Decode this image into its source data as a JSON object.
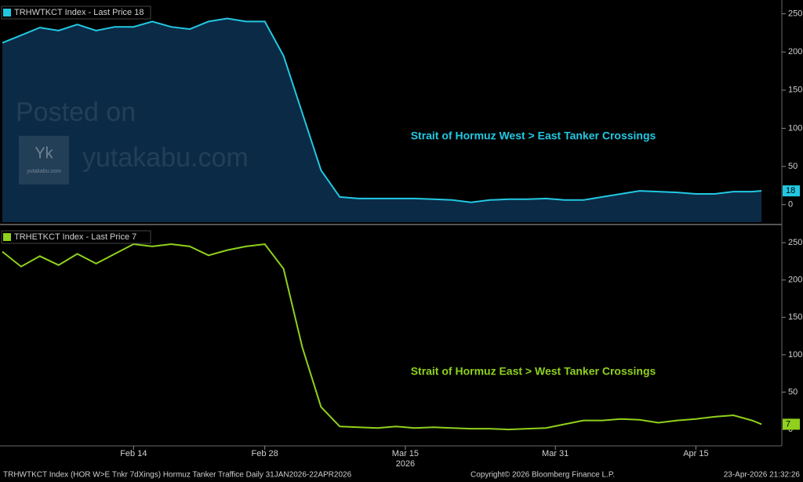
{
  "chart_data": [
    {
      "type": "area",
      "legend": "TRHWTKCT Index - Last Price 18",
      "annotation": "Strait of Hormuz West > East Tanker Crossings",
      "x": [
        "2026-01-31",
        "2026-02-02",
        "2026-02-04",
        "2026-02-06",
        "2026-02-08",
        "2026-02-10",
        "2026-02-12",
        "2026-02-14",
        "2026-02-16",
        "2026-02-18",
        "2026-02-20",
        "2026-02-22",
        "2026-02-24",
        "2026-02-26",
        "2026-02-28",
        "2026-03-02",
        "2026-03-04",
        "2026-03-06",
        "2026-03-08",
        "2026-03-10",
        "2026-03-12",
        "2026-03-14",
        "2026-03-16",
        "2026-03-18",
        "2026-03-20",
        "2026-03-22",
        "2026-03-24",
        "2026-03-26",
        "2026-03-28",
        "2026-03-30",
        "2026-04-01",
        "2026-04-03",
        "2026-04-05",
        "2026-04-07",
        "2026-04-09",
        "2026-04-11",
        "2026-04-13",
        "2026-04-15",
        "2026-04-17",
        "2026-04-19",
        "2026-04-21",
        "2026-04-22"
      ],
      "series": [
        {
          "name": "TRHWTKCT Index",
          "color": "#22c8e2",
          "fill": "#0b2a46",
          "values": [
            212,
            222,
            232,
            228,
            236,
            228,
            233,
            233,
            240,
            233,
            230,
            240,
            244,
            240,
            240,
            195,
            120,
            45,
            10,
            8,
            8,
            8,
            8,
            7,
            6,
            3,
            6,
            7,
            7,
            8,
            6,
            6,
            10,
            14,
            18,
            17,
            16,
            14,
            14,
            17,
            17,
            18
          ]
        }
      ],
      "xlim": [
        "2026-01-31",
        "2026-04-24"
      ],
      "ylim": [
        -23,
        263
      ],
      "yticks": [
        0,
        50,
        100,
        150,
        200,
        250
      ]
    },
    {
      "type": "line",
      "legend": "TRHETKCT Index - Last Price 7",
      "annotation": "Strait of Hormuz East > West Tanker Crossings",
      "x": [
        "2026-01-31",
        "2026-02-02",
        "2026-02-04",
        "2026-02-06",
        "2026-02-08",
        "2026-02-10",
        "2026-02-12",
        "2026-02-14",
        "2026-02-16",
        "2026-02-18",
        "2026-02-20",
        "2026-02-22",
        "2026-02-24",
        "2026-02-26",
        "2026-02-28",
        "2026-03-02",
        "2026-03-04",
        "2026-03-06",
        "2026-03-08",
        "2026-03-10",
        "2026-03-12",
        "2026-03-14",
        "2026-03-16",
        "2026-03-18",
        "2026-03-20",
        "2026-03-22",
        "2026-03-24",
        "2026-03-26",
        "2026-03-28",
        "2026-03-30",
        "2026-04-01",
        "2026-04-03",
        "2026-04-05",
        "2026-04-07",
        "2026-04-09",
        "2026-04-11",
        "2026-04-13",
        "2026-04-15",
        "2026-04-17",
        "2026-04-19",
        "2026-04-21",
        "2026-04-22"
      ],
      "series": [
        {
          "name": "TRHETKCT Index",
          "color": "#8fd11c",
          "values": [
            238,
            218,
            232,
            220,
            235,
            222,
            235,
            248,
            245,
            248,
            245,
            233,
            240,
            245,
            248,
            215,
            110,
            30,
            4,
            3,
            2,
            4,
            2,
            3,
            2,
            1,
            1,
            0,
            1,
            2,
            7,
            12,
            12,
            14,
            13,
            9,
            12,
            14,
            17,
            19,
            12,
            7
          ]
        }
      ],
      "xlim": [
        "2026-01-31",
        "2026-04-24"
      ],
      "ylim": [
        -22,
        268
      ],
      "yticks": [
        0,
        50,
        100,
        150,
        200,
        250
      ],
      "xticks": [
        {
          "value": "2026-02-14",
          "label": "Feb 14"
        },
        {
          "value": "2026-02-28",
          "label": "Feb 28"
        },
        {
          "value": "2026-03-15",
          "label": "Mar 15"
        },
        {
          "value": "2026-03-31",
          "label": "Mar 31"
        },
        {
          "value": "2026-04-15",
          "label": "Apr 15"
        }
      ],
      "xlabel": "2026"
    }
  ],
  "footer": {
    "left": "TRHWTKCT Index (HOR W>E Tnkr 7dXings) Hormuz Tanker Traffice Daily 31JAN2026-22APR2026",
    "center": "Copyright© 2026 Bloomberg Finance L.P.",
    "right": "23-Apr-2026 21:32:26"
  },
  "watermark": {
    "line1": "Posted on",
    "line2": "yutakabu.com",
    "logo": "Yk",
    "logo_caption": "yutakabu.com"
  }
}
